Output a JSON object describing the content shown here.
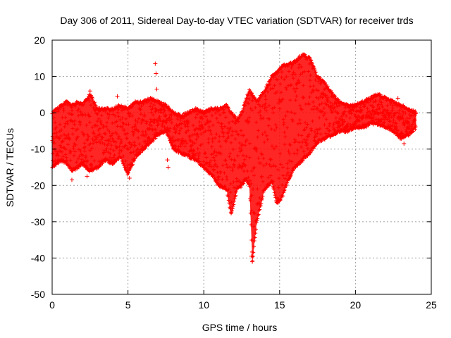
{
  "chart_data": {
    "type": "scatter",
    "title": "Day 306 of 2011, Sidereal Day-to-day VTEC variation (SDTVAR) for receiver trds",
    "xlabel": "GPS time / hours",
    "ylabel": "SDTVAR / TECUs",
    "xlim": [
      0,
      25
    ],
    "ylim": [
      -50,
      20
    ],
    "xticks": [
      0,
      5,
      10,
      15,
      20,
      25
    ],
    "yticks": [
      -50,
      -40,
      -30,
      -20,
      -10,
      0,
      10,
      20
    ],
    "grid": true,
    "marker": "+",
    "color": "#ff0000",
    "series": [
      {
        "name": "SDTVAR",
        "envelope": [
          {
            "x": 0.0,
            "lo": -15,
            "hi": 0
          },
          {
            "x": 0.3,
            "lo": -14,
            "hi": 1
          },
          {
            "x": 0.6,
            "lo": -13,
            "hi": 2
          },
          {
            "x": 1.0,
            "lo": -14,
            "hi": 3
          },
          {
            "x": 1.3,
            "lo": -16,
            "hi": 2
          },
          {
            "x": 1.7,
            "lo": -15,
            "hi": 3
          },
          {
            "x": 2.0,
            "lo": -14,
            "hi": 2
          },
          {
            "x": 2.5,
            "lo": -16,
            "hi": 5
          },
          {
            "x": 3.0,
            "lo": -15,
            "hi": 1
          },
          {
            "x": 3.5,
            "lo": -13,
            "hi": 1
          },
          {
            "x": 4.0,
            "lo": -14,
            "hi": 1
          },
          {
            "x": 4.5,
            "lo": -12,
            "hi": 2
          },
          {
            "x": 5.0,
            "lo": -17,
            "hi": 1
          },
          {
            "x": 5.5,
            "lo": -12,
            "hi": 3
          },
          {
            "x": 6.0,
            "lo": -10,
            "hi": 3
          },
          {
            "x": 6.5,
            "lo": -8,
            "hi": 4
          },
          {
            "x": 7.0,
            "lo": -6,
            "hi": 3
          },
          {
            "x": 7.5,
            "lo": -5,
            "hi": 2
          },
          {
            "x": 8.0,
            "lo": -10,
            "hi": 0
          },
          {
            "x": 8.5,
            "lo": -11,
            "hi": -1
          },
          {
            "x": 9.0,
            "lo": -12,
            "hi": 0
          },
          {
            "x": 9.5,
            "lo": -13,
            "hi": 1
          },
          {
            "x": 10.0,
            "lo": -15,
            "hi": 0
          },
          {
            "x": 10.5,
            "lo": -17,
            "hi": 1
          },
          {
            "x": 11.0,
            "lo": -20,
            "hi": 1
          },
          {
            "x": 11.5,
            "lo": -21,
            "hi": 2
          },
          {
            "x": 11.8,
            "lo": -28,
            "hi": 0
          },
          {
            "x": 12.2,
            "lo": -21,
            "hi": -2
          },
          {
            "x": 12.5,
            "lo": -20,
            "hi": 0
          },
          {
            "x": 12.8,
            "lo": -18,
            "hi": 4
          },
          {
            "x": 13.0,
            "lo": -20,
            "hi": 6
          },
          {
            "x": 13.2,
            "lo": -41,
            "hi": 5
          },
          {
            "x": 13.5,
            "lo": -30,
            "hi": 3
          },
          {
            "x": 14.0,
            "lo": -21,
            "hi": 6
          },
          {
            "x": 14.5,
            "lo": -19,
            "hi": 10
          },
          {
            "x": 14.8,
            "lo": -25,
            "hi": 11
          },
          {
            "x": 15.2,
            "lo": -23,
            "hi": 13
          },
          {
            "x": 15.5,
            "lo": -19,
            "hi": 13
          },
          {
            "x": 16.0,
            "lo": -15,
            "hi": 14
          },
          {
            "x": 16.5,
            "lo": -13,
            "hi": 16
          },
          {
            "x": 17.0,
            "lo": -11,
            "hi": 15
          },
          {
            "x": 17.5,
            "lo": -8,
            "hi": 10
          },
          {
            "x": 18.0,
            "lo": -7,
            "hi": 8
          },
          {
            "x": 18.5,
            "lo": -6,
            "hi": 5
          },
          {
            "x": 19.0,
            "lo": -5,
            "hi": 3
          },
          {
            "x": 19.5,
            "lo": -5,
            "hi": 2
          },
          {
            "x": 20.0,
            "lo": -4,
            "hi": 2
          },
          {
            "x": 20.5,
            "lo": -4,
            "hi": 3
          },
          {
            "x": 21.0,
            "lo": -3,
            "hi": 4
          },
          {
            "x": 21.5,
            "lo": -3,
            "hi": 5
          },
          {
            "x": 22.0,
            "lo": -4,
            "hi": 4
          },
          {
            "x": 22.5,
            "lo": -5,
            "hi": 3
          },
          {
            "x": 23.0,
            "lo": -7,
            "hi": 2
          },
          {
            "x": 23.5,
            "lo": -6,
            "hi": 1
          },
          {
            "x": 24.0,
            "lo": -4,
            "hi": 0
          }
        ],
        "outliers": [
          {
            "x": 6.8,
            "y": 13.5
          },
          {
            "x": 6.85,
            "y": 10.8
          },
          {
            "x": 6.9,
            "y": 6.5
          },
          {
            "x": 7.6,
            "y": -13
          },
          {
            "x": 7.65,
            "y": -15
          },
          {
            "x": 5.1,
            "y": -18
          },
          {
            "x": 1.3,
            "y": -18.5
          },
          {
            "x": 2.3,
            "y": -17.5
          },
          {
            "x": 13.2,
            "y": -41
          },
          {
            "x": 13.15,
            "y": -39.5
          },
          {
            "x": 2.5,
            "y": 6
          },
          {
            "x": 4.3,
            "y": 4.5
          },
          {
            "x": 23.2,
            "y": -8.5
          },
          {
            "x": 22.8,
            "y": 4
          }
        ]
      }
    ]
  }
}
